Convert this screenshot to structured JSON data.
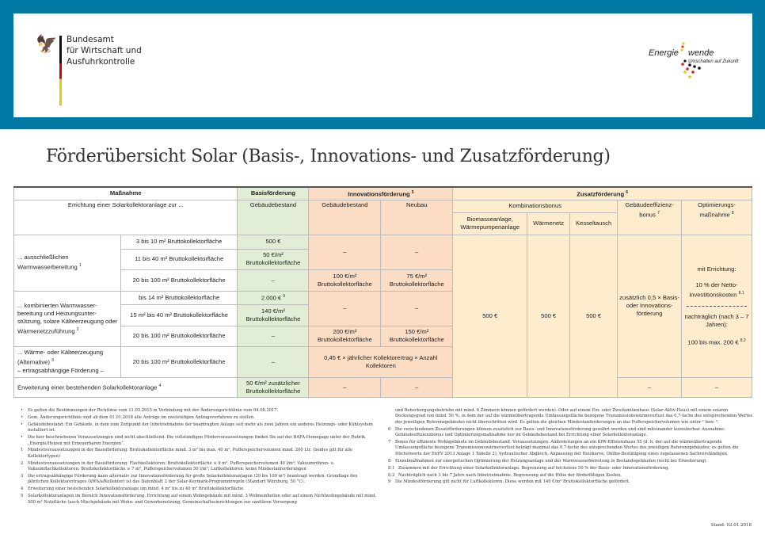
{
  "header": {
    "org_lines": [
      "Bundesamt",
      "für Wirtschaft und",
      "Ausfuhrkontrolle"
    ],
    "logo2_a": "Energie",
    "logo2_b": "wende",
    "logo2_sub": "Umschalten auf Zukunft",
    "brand_color": "#0078a4"
  },
  "title": "Förderübersicht Solar (Basis-, Innovations- und Zusatzförderung)",
  "table": {
    "h_massnahme": "Maßnahme",
    "h_basis": "Basisförderung",
    "h_innov": "Innovationsförderung",
    "h_innov_sup": "5",
    "h_zusatz": "Zusatzförderung",
    "h_zusatz_sup": "6",
    "h_errichtung": "Errichtung einer Solarkollektoranlage zur ...",
    "h_gebaeude": "Gebäudebestand",
    "h_neubau": "Neubau",
    "h_kombi": "Kombinationsbonus",
    "h_bio": "Biomasseanlage, Wärmepumpenanlage",
    "h_waermenetz": "Wärmenetz",
    "h_kessel": "Kesseltausch",
    "h_effizienz": "Gebäudeeffizienz-bonus",
    "h_effizienz_sup": "7",
    "h_optim": "Optimierungs-maßnahme",
    "h_optim_sup": "8",
    "g1": "... ausschließlichen Warmwasserbereitung",
    "g1_sup": "1",
    "g2": "... kombinierten Warmwasser-bereitung und Heizungsunter-stützung, solare Kälteerzeugung oder Wärmenetzzuführung",
    "g2_sup": "2",
    "g3a": "... Wärme- oder Kälteerzeugung (Alternative)",
    "g3_sup": "3",
    "g3b": "– ertragsabhängige Förderung –",
    "g4": "Erweiterung einer bestehenden Solarkollektoranlage",
    "g4_sup": "4",
    "r1": "3 bis 10 m² Bruttokollektorfläche",
    "r2": "11 bis 40 m² Bruttokollektorfläche",
    "r3": "20 bis 100 m² Bruttokollektorfläche",
    "r4": "bis 14 m² Bruttokollektorfläche",
    "r5": "15 m² bis 40 m² Bruttokollektorfläche",
    "r6": "20 bis 100 m² Bruttokollektorfläche",
    "r7": "20 bis 100 m² Bruttokollektorfläche",
    "b1": "500 €",
    "b2": "50 €/m² Bruttokollektorfläche",
    "b4": "2.000 €",
    "b4_sup": "9",
    "b5": "140 €/m² Bruttokollektorfläche",
    "b8": "50 €/m² zusätzlicher Bruttokollektorfläche",
    "i3g": "100 €/m² Bruttokollektorfläche",
    "i3n": "75 €/m² Bruttokollektorfläche",
    "i6g": "200 €/m² Bruttokollektorfläche",
    "i6n": "150 €/m² Bruttokollektorfläche",
    "i7": "0,45 € × jährlicher Kollektorertrag × Anzahl Kollektoren",
    "dash": "–",
    "z_kombi": "500 €",
    "z_eff": "zusätzlich 0,5 × Basis- oder Innovations-förderung",
    "z_opt1": "mit Errichtung:",
    "z_opt2": "10 % der Netto-investitionskosten",
    "z_opt2_sup": "8.1",
    "z_opt3": "nachträglich (nach 3 – 7 Jahren):",
    "z_opt4": "100 bis max. 200 €",
    "z_opt4_sup": "8.2"
  },
  "footnotes_left": [
    {
      "n": "•",
      "t": "Es gelten die Bestimmungen der Richtlinie vom 11.03.2015 in Verbindung mit der Änderungsrichtlinie vom 04.08.2017."
    },
    {
      "n": "•",
      "t": "Gem. Änderungsrichtlinie sind ab dem 01.01.2018 alle Anträge im zweistufigen Antragsverfahren zu stellen."
    },
    {
      "n": "•",
      "t": "Gebäudebestand: Ein Gebäude, in dem zum Zeitpunkt der Inbetriebnahme der beantragten Anlage seit mehr als zwei Jahren ein anderes Heizungs- oder Kühlsystem installiert ist."
    },
    {
      "n": "•",
      "t": "Die hier beschriebenen Voraussetzungen sind nicht abschließend. Die vollständigen Fördervoraussetzungen finden Sie auf der BAFA-Homepage unter der Rubrik „Energie/Heizen mit Erneuerbaren Energien“."
    },
    {
      "n": "1",
      "t": "Mindestvoraussetzungen in der Basisförderung: Bruttokollektorfläche mind. 3 m² bis max. 40 m², Pufferspeichervolumen mind. 200 Ltr. (beides gilt für alle Kollektortypen)"
    },
    {
      "n": "2",
      "t": "Mindestvoraussetzungen in der Basisförderung: Flachkollektoren: Bruttokollektorfläche ≥ 9 m², Pufferspeichervolumen 40 l/m²; Vakuumröhren- u. Vakuumflachkollektoren: Bruttokollektorfläche ≥ 7 m², Pufferspeichervolumen 50 l/m²; Luftkollektoren: keine Mindestanforderungen"
    },
    {
      "n": "3",
      "t": "Die ertragsabhängige Förderung kann alternativ zur Innovationsförderung für große Solarkollektoranlagen (20 bis 100 m²) beantragt werden. Grundlage des jährlichen Kollektorertrages (kWh/a/Kollektor) ist das Datenblatt 2 der Solar-Keymark-Programmregeln (Standort Würzburg, 50 °C)."
    },
    {
      "n": "4",
      "t": "Erweiterung einer bestehenden Solarkollektoranlage um mind. 4 m² bis zu 40 m² Bruttokollektorfläche."
    },
    {
      "n": "5",
      "t": "Solarkollektoranlagen im Bereich Innovationsförderung. Errichtung auf einem Wohngebäude mit mind. 3 Wohneinheiten oder auf einem Nichtwohngebäude mit mind. 500 m² Nutzfläche (auch Mischgebäude mit Wohn- und Gewerbenutzung, Gemeinschaftseinrichtungen zur sanitären Versorgung"
    }
  ],
  "footnotes_right": [
    {
      "n": "",
      "t": "und Beherbergungsbetriebe mit mind. 6 Zimmern können gefördert werden). Oder auf einem Ein- oder Zweifamilienhaus (Solar-Aktiv-Haus) mit einem solaren Deckungsgrad von mind. 50 %, in dem der auf die wärmeübertragende Umfassungsfläche bezogene Transmissionswärmeverlust das 0,7-fache des entsprechenden Wertes des jeweiligen Referenzgebäudes nicht überschritten wird. Es gelten die gleichen Mindestanforderungen an das Pufferspeichervolumen wie unter ¹ bzw. ²."
    },
    {
      "n": "6",
      "t": "Die verschiedenen Zusatzförderungen können zusätzlich zur Basis- und Innovationsförderung gewährt werden und sind miteinander kumulierbar. Ausnahme: Gebäudeeffizienzbonus und Optimierungsmaßnahme nur im Gebäudebestand bei Errichtung einer Solarkollektoranlage."
    },
    {
      "n": "7",
      "t": "Bonus für effiziente Wohngebäude im Gebäudebestand. Voraussetzungen: Anforderungen an ein KfW-Effizienzhaus 55 (d. h. der auf die wärmeübertragende Umfassungsfläche bezogene Transmissionswärmeverlust beträgt maximal das 0,7-fache des entsprechenden Wertes des jeweiligen Referenzgebäudes; es gelten die Höchstwerte der EnEV 2013 Anlage 1 Tabelle 2), hydraulischer Abgleich, Anpassung der Heizkurve, Online-Bestätigung eines zugelassenen Sachverständigen."
    },
    {
      "n": "8",
      "t": "Einzelmaßnahmen zur energetischen Optimierung der Heizungsanlage und der Warmwasserbereitung in Bestandsgebäuden (nicht bei Erweiterung)."
    },
    {
      "n": "8.1",
      "t": "Zusammen mit der Errichtung einer Solarkollektoranlage. Begrenzung auf höchstens 50 % der Basis- oder Innovationsförderung."
    },
    {
      "n": "8.2",
      "t": "Nachträglich nach 3 bis 7 Jahre nach Inbetriebnahme. Begrenzung auf die Höhe der förderfähigen Kosten."
    },
    {
      "n": "9",
      "t": "Die Mindestförderung gilt nicht für Luftkollektoren. Diese werden mit 140 €/m² Bruttokollektorfläche gefördert."
    }
  ],
  "stand": "Stand: 02.01.2018"
}
